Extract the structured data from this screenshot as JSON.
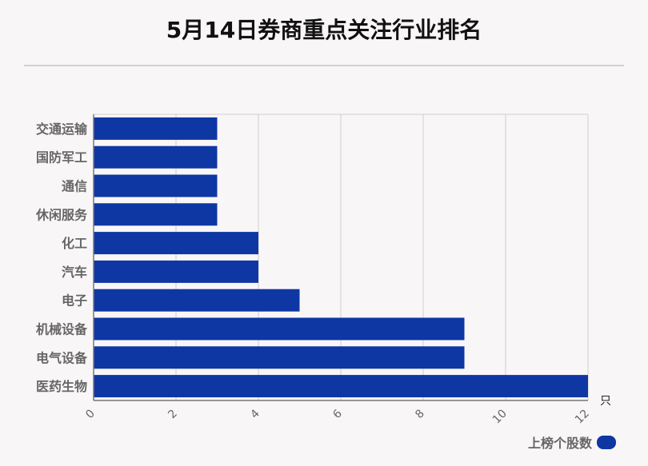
{
  "title": "5月14日券商重点关注行业排名",
  "colors": {
    "bar": "#0e37a4",
    "grid": "#cfcfcf",
    "axis": "#777777",
    "label": "#666666"
  },
  "chart_data": {
    "type": "bar",
    "orientation": "horizontal",
    "title": "5月14日券商重点关注行业排名",
    "categories": [
      "交通运输",
      "国防军工",
      "通信",
      "休闲服务",
      "化工",
      "汽车",
      "电子",
      "机械设备",
      "电气设备",
      "医药生物"
    ],
    "series": [
      {
        "name": "上榜个股数",
        "values": [
          3,
          3,
          3,
          3,
          4,
          4,
          5,
          9,
          9,
          12
        ]
      }
    ],
    "x_ticks": [
      "0",
      "2",
      "4",
      "6",
      "8",
      "10",
      "12"
    ],
    "xlim": [
      0,
      12
    ],
    "x_unit": "只",
    "grid": true,
    "legend": "bottom-right"
  }
}
